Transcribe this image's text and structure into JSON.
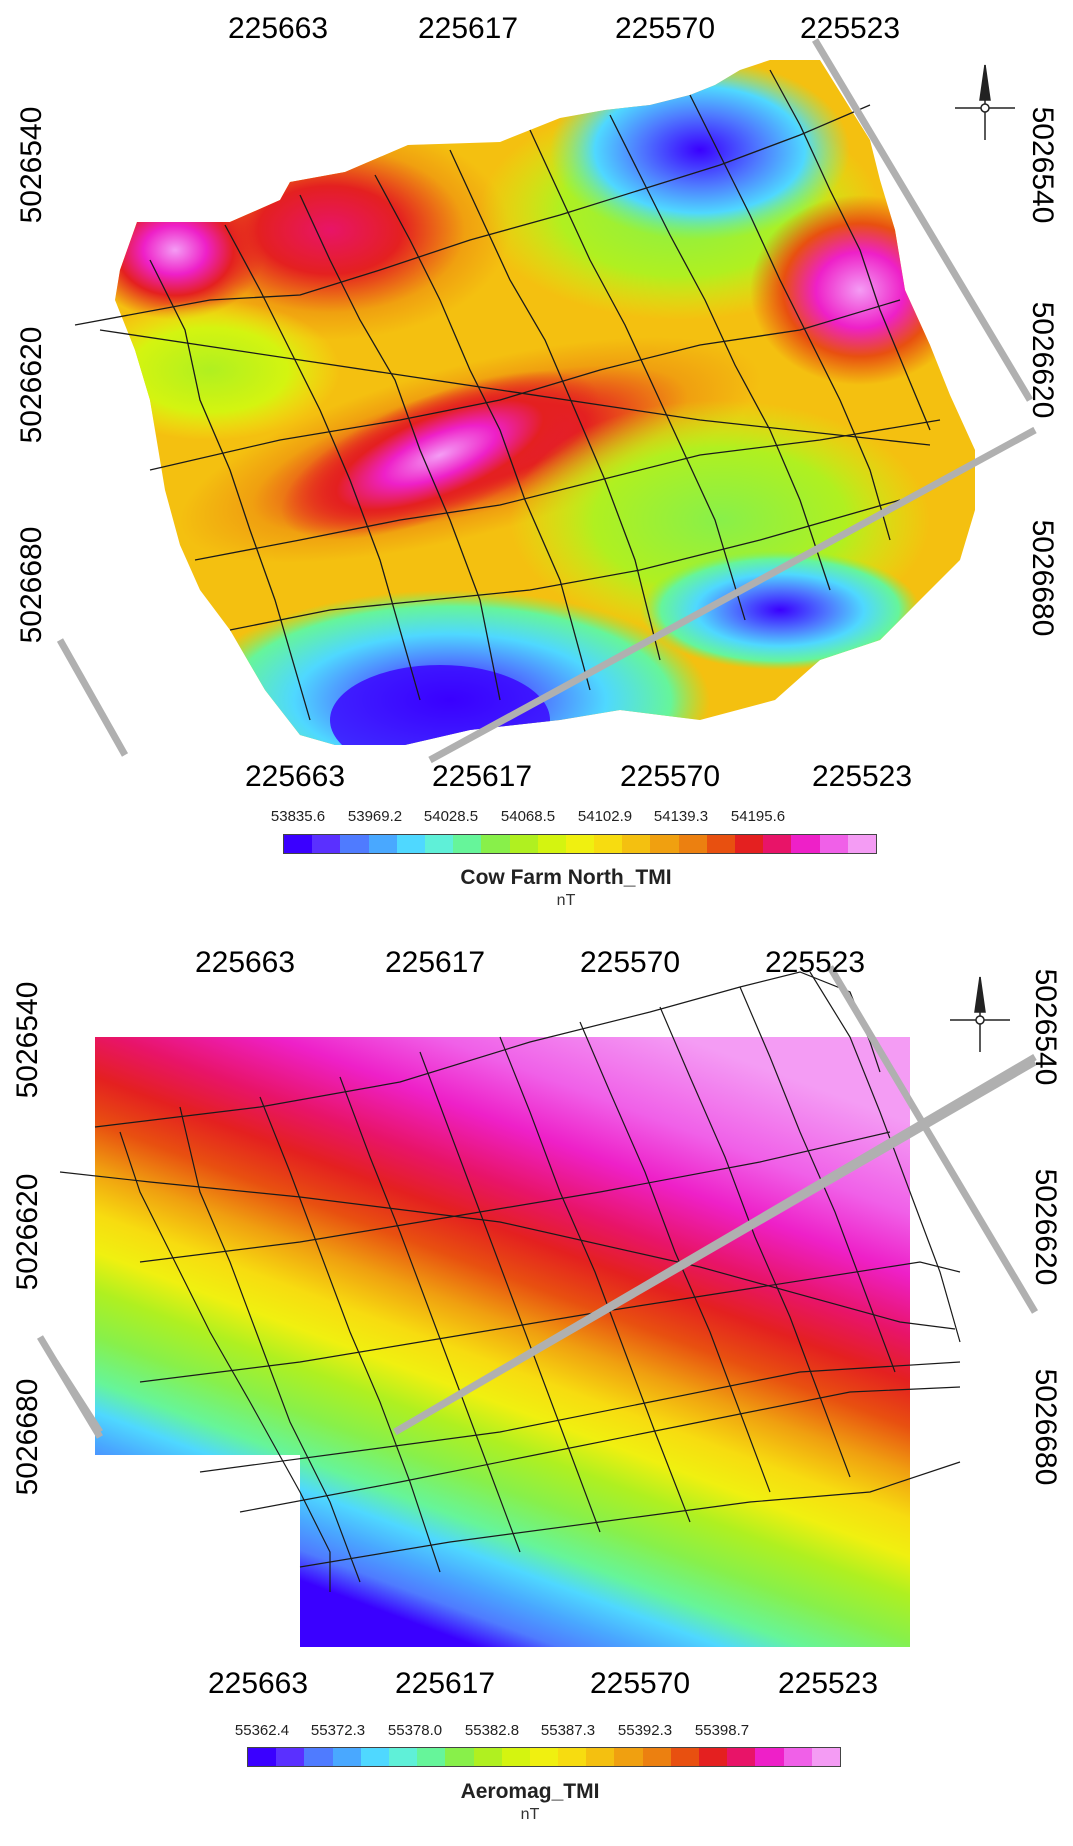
{
  "panels": [
    {
      "x_ticks_top": [
        "225663",
        "225617",
        "225570",
        "225523"
      ],
      "x_ticks_bottom": [
        "225663",
        "225617",
        "225570",
        "225523"
      ],
      "y_ticks_left": [
        "5026540",
        "5026620",
        "5026680"
      ],
      "y_ticks_right": [
        "5026540",
        "5026620",
        "5026680"
      ],
      "legend": {
        "ticks": [
          "53835.6",
          "53969.2",
          "54028.5",
          "54068.5",
          "54102.9",
          "54139.3",
          "54195.6"
        ],
        "title": "Cow Farm North_TMI",
        "unit": "nT"
      }
    },
    {
      "x_ticks_top": [
        "225663",
        "225617",
        "225570",
        "225523"
      ],
      "x_ticks_bottom": [
        "225663",
        "225617",
        "225570",
        "225523"
      ],
      "y_ticks_left": [
        "5026540",
        "5026620",
        "5026680"
      ],
      "y_ticks_right": [
        "5026540",
        "5026620",
        "5026680"
      ],
      "legend": {
        "ticks": [
          "55362.4",
          "55372.3",
          "55378.0",
          "55382.8",
          "55387.3",
          "55392.3",
          "55398.7"
        ],
        "title": "Aeromag_TMI",
        "unit": "nT"
      }
    }
  ],
  "colormap": [
    "#3a00ff",
    "#5a30ff",
    "#4f7bff",
    "#49a8ff",
    "#4fd8ff",
    "#5ff0d8",
    "#66f59a",
    "#88f04a",
    "#b0f020",
    "#d4f410",
    "#f0f010",
    "#f7dc10",
    "#f4c010",
    "#f0a010",
    "#ec8010",
    "#e85010",
    "#e42020",
    "#e81468",
    "#ee20c8",
    "#f060e8",
    "#f49cf4"
  ],
  "north_arrow": "north-arrow-icon"
}
